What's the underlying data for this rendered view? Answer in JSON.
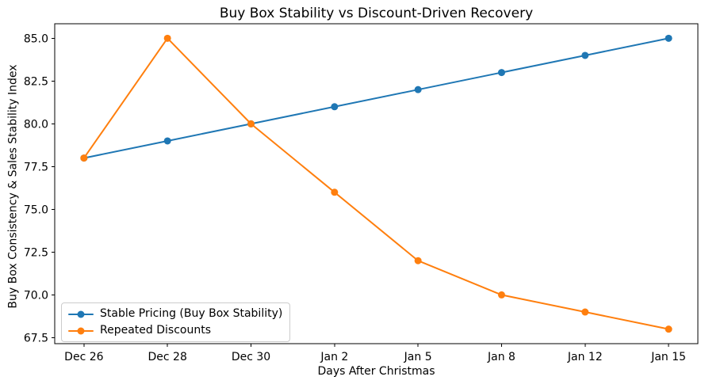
{
  "chart_data": {
    "type": "line",
    "title": "Buy Box Stability vs Discount-Driven Recovery",
    "xlabel": "Days After Christmas",
    "ylabel": "Buy Box Consistency & Sales Stability Index",
    "categories": [
      "Dec 26",
      "Dec 28",
      "Dec 30",
      "Jan 2",
      "Jan 5",
      "Jan 8",
      "Jan 12",
      "Jan 15"
    ],
    "series": [
      {
        "name": "Stable Pricing (Buy Box Stability)",
        "color": "#1f77b4",
        "marker": "circle",
        "values": [
          78,
          79,
          80,
          81,
          82,
          83,
          84,
          85
        ]
      },
      {
        "name": "Repeated Discounts",
        "color": "#ff7f0e",
        "marker": "circle",
        "values": [
          78,
          85,
          80,
          76,
          72,
          70,
          69,
          68
        ]
      }
    ],
    "yticks": [
      67.5,
      70.0,
      72.5,
      75.0,
      77.5,
      80.0,
      82.5,
      85.0
    ],
    "ytick_labels": [
      "67.5",
      "70.0",
      "72.5",
      "75.0",
      "77.5",
      "80.0",
      "82.5",
      "85.0"
    ],
    "ylim": [
      67.15,
      85.85
    ],
    "xlim": [
      -0.35,
      7.35
    ],
    "grid": false,
    "legend_position": "lower left",
    "axis_color": "#000000",
    "background_color": "#ffffff"
  }
}
